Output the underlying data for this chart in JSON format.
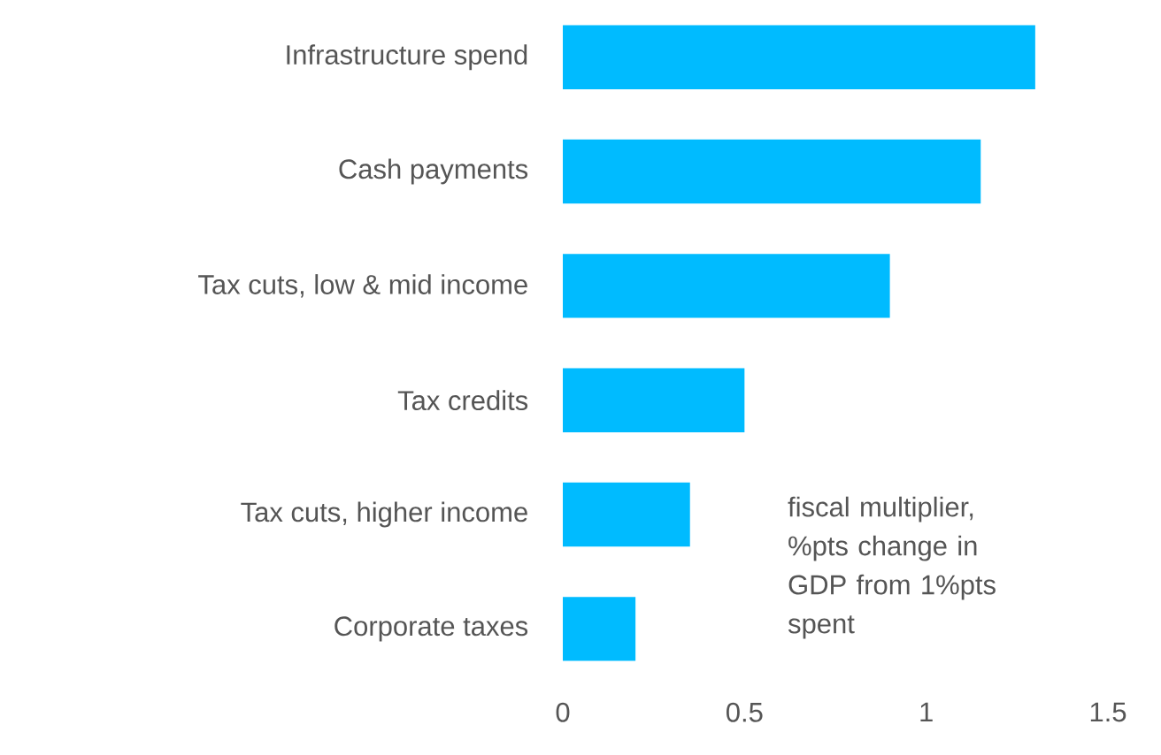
{
  "chart_data": {
    "type": "bar",
    "orientation": "horizontal",
    "categories": [
      "Infrastructure spend",
      "Cash payments",
      "Tax cuts, low & mid income",
      "Tax credits",
      "Tax cuts, higher income",
      "Corporate taxes"
    ],
    "values": [
      1.3,
      1.15,
      0.9,
      0.5,
      0.35,
      0.2
    ],
    "color": "#00bbff",
    "xlim": [
      0,
      1.5
    ],
    "xticks": [
      0,
      0.5,
      1,
      1.5
    ],
    "xlabel": "fiscal multiplier, %pts change in GDP from 1%pts spent",
    "grid": false
  }
}
